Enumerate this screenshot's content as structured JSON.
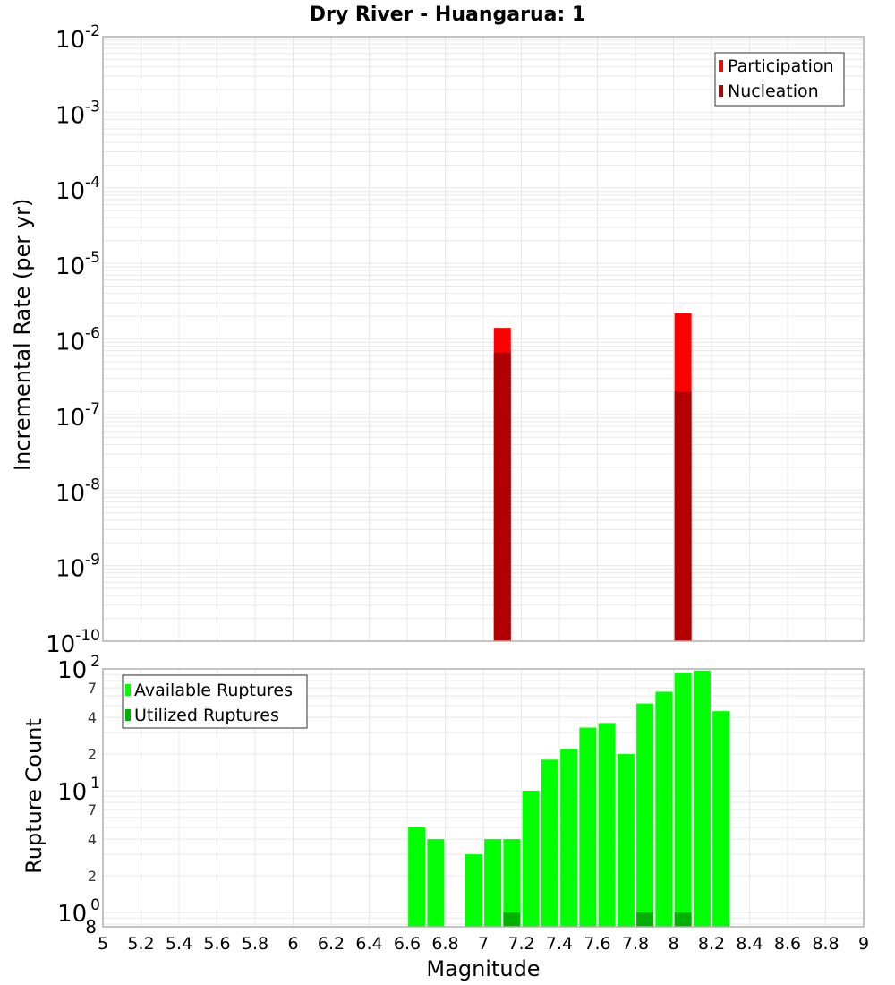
{
  "title": "Dry River - Huangarua: 1",
  "colors": {
    "participation": "#ff0000",
    "nucleation": "#b20000",
    "available": "#00ff00",
    "utilized": "#00b200",
    "grid": "#e8e8e8",
    "frame": "#b0b0b0"
  },
  "chart_data": [
    {
      "type": "bar",
      "title": "Dry River - Huangarua: 1",
      "xlabel": "Magnitude",
      "ylabel": "Incremental Rate (per yr)",
      "yscale": "log",
      "ylim": [
        1e-10,
        0.01
      ],
      "xlim": [
        5,
        9
      ],
      "grid": true,
      "legend_position": "top-right",
      "yticks": [
        "10^-2",
        "10^-3",
        "10^-4",
        "10^-5",
        "10^-6",
        "10^-7",
        "10^-8",
        "10^-9",
        "10^-10"
      ],
      "x": [
        7.1,
        8.05
      ],
      "series": [
        {
          "name": "Participation",
          "color": "#ff0000",
          "values": [
            1.4e-06,
            2.2e-06
          ]
        },
        {
          "name": "Nucleation",
          "color": "#b20000",
          "values": [
            6.6e-07,
            2e-07
          ]
        }
      ]
    },
    {
      "type": "bar",
      "title": "",
      "xlabel": "Magnitude",
      "ylabel": "Rupture Count",
      "yscale": "log",
      "ylim": [
        0.8,
        100
      ],
      "xlim": [
        5,
        9
      ],
      "grid": true,
      "legend_position": "top-left",
      "xticks": [
        "5",
        "5.2",
        "5.4",
        "5.6",
        "5.8",
        "6",
        "6.2",
        "6.4",
        "6.6",
        "6.8",
        "7",
        "7.2",
        "7.4",
        "7.6",
        "7.8",
        "8",
        "8.2",
        "8.4",
        "8.6",
        "8.8",
        "9"
      ],
      "x": [
        6.65,
        6.75,
        6.95,
        7.05,
        7.15,
        7.25,
        7.35,
        7.45,
        7.55,
        7.65,
        7.75,
        7.85,
        7.95,
        8.05,
        8.15,
        8.25
      ],
      "series": [
        {
          "name": "Available Ruptures",
          "color": "#00ff00",
          "values": [
            5,
            4,
            3,
            4,
            4,
            10,
            18,
            22,
            33,
            36,
            20,
            52,
            65,
            92,
            97,
            45
          ]
        },
        {
          "name": "Utilized Ruptures",
          "color": "#00b200",
          "values": [
            0,
            0,
            0,
            0,
            1,
            0,
            0,
            0,
            0,
            0,
            0,
            1,
            0,
            1,
            0,
            0
          ]
        }
      ]
    }
  ],
  "top_plot": {
    "ylabel": "Incremental Rate (per yr)",
    "legend": [
      "Participation",
      "Nucleation"
    ]
  },
  "bottom_plot": {
    "ylabel": "Rupture Count",
    "xlabel": "Magnitude",
    "legend": [
      "Available Ruptures",
      "Utilized Ruptures"
    ],
    "minor_tick_labels": [
      "7",
      "4",
      "2"
    ],
    "bottom_tick_label": "8"
  }
}
